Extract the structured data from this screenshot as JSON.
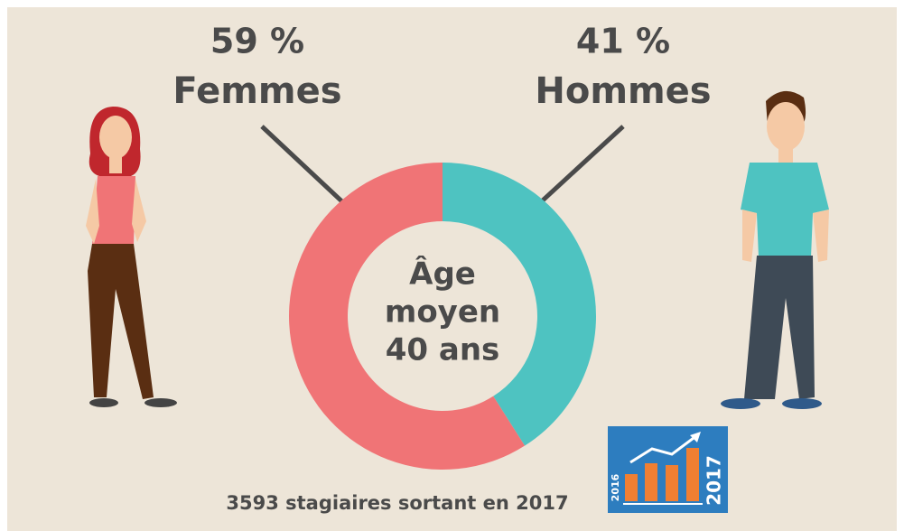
{
  "chart_data": {
    "type": "donut",
    "categories": [
      "Femmes",
      "Hommes"
    ],
    "values": [
      59,
      41
    ],
    "value_labels": [
      "59 %",
      "41 %"
    ],
    "colors": [
      "#f07476",
      "#4ec3c1"
    ],
    "center_label": [
      "Âge",
      "moyen",
      "40 ans"
    ],
    "footer": "3593 stagiaires sortant en 2017",
    "badge": {
      "from": "2016",
      "to": "2017"
    }
  }
}
